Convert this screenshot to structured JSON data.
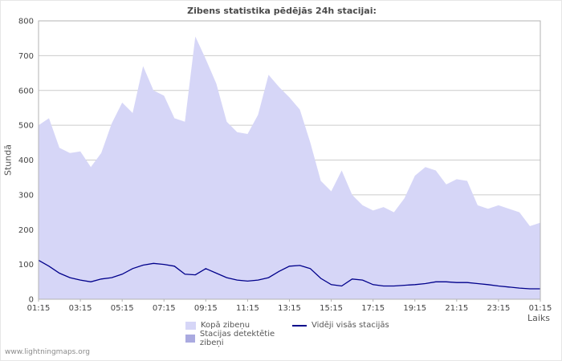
{
  "page": {
    "title": "Zibens statistika pēdējās 24h stacijai:",
    "watermark": "www.lightningmaps.org"
  },
  "colors": {
    "area_total": "#d6d6f7",
    "area_station": "#aaaae0",
    "line_average": "#00008b",
    "grid": "#cccccc",
    "axis": "#b3b3b3",
    "text": "#444444"
  },
  "chart_data": {
    "type": "area",
    "title": "Zibens statistika pēdējās 24h stacijai:",
    "xlabel": "Laiks",
    "ylabel": "Stundā",
    "ylim": [
      0,
      800
    ],
    "ytick_interval": 100,
    "grid": true,
    "legend_position": "bottom",
    "x_start": "01:15",
    "x_interval_minutes": 30,
    "x_tick_labels": [
      "01:15",
      "03:15",
      "05:15",
      "07:15",
      "09:15",
      "11:15",
      "13:15",
      "15:15",
      "17:15",
      "19:15",
      "21:15",
      "23:15",
      "01:15"
    ],
    "series": [
      {
        "name": "Kopā zibeņu",
        "type": "area",
        "color": "#d6d6f7",
        "values": [
          500,
          520,
          435,
          420,
          425,
          380,
          420,
          505,
          565,
          535,
          670,
          600,
          585,
          520,
          510,
          755,
          690,
          620,
          510,
          480,
          475,
          530,
          645,
          610,
          580,
          545,
          450,
          340,
          310,
          370,
          300,
          270,
          255,
          265,
          250,
          290,
          355,
          380,
          370,
          330,
          345,
          340,
          270,
          260,
          270,
          260,
          250,
          210,
          220
        ]
      },
      {
        "name": "Stacijas detektētie zibeņi",
        "type": "area",
        "color": "#aaaae0",
        "values": []
      },
      {
        "name": "Vidēji visās stacijās",
        "type": "line",
        "color": "#00008b",
        "values": [
          112,
          95,
          75,
          62,
          55,
          50,
          58,
          62,
          72,
          88,
          98,
          103,
          100,
          95,
          72,
          70,
          88,
          75,
          62,
          55,
          52,
          55,
          62,
          80,
          95,
          97,
          88,
          60,
          42,
          38,
          58,
          55,
          42,
          38,
          38,
          40,
          42,
          45,
          50,
          50,
          48,
          48,
          45,
          42,
          38,
          35,
          32,
          30,
          30
        ]
      }
    ]
  }
}
